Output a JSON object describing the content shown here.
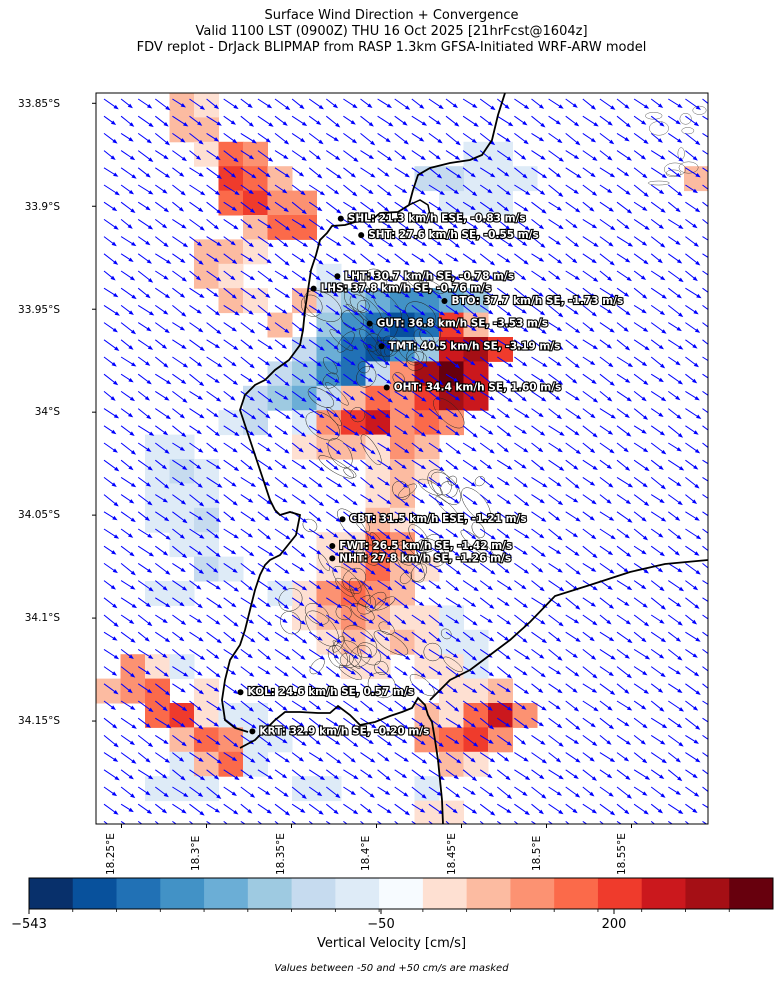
{
  "title": {
    "line1": "Surface Wind Direction + Convergence",
    "line2": "Valid 1100 LST (0900Z) THU 16 Oct 2025 [21hrFcst@1604z]",
    "line3": "FDV replot - DrJack BLIPMAP from RASP 1.3km GFSA-Initiated WRF-ARW model"
  },
  "axes": {
    "lat_labels": [
      "33.85°S",
      "33.9°S",
      "33.95°S",
      "34°S",
      "34.05°S",
      "34.1°S",
      "34.15°S"
    ],
    "lon_labels": [
      "18.25°E",
      "18.3°E",
      "18.35°E",
      "18.4°E",
      "18.45°E",
      "18.5°E",
      "18.55°E"
    ],
    "lat_range": [
      -34.2,
      -33.845
    ],
    "lon_range": [
      18.235,
      18.595
    ],
    "wind_arrow_color": "#0000ff"
  },
  "stations": [
    {
      "code": "SHL",
      "lon": 18.379,
      "lat": -33.906,
      "label": "SHL: 21.3 km/h ESE, -0.83 m/s"
    },
    {
      "code": "SHT",
      "lon": 18.391,
      "lat": -33.914,
      "label": "SHT: 27.6 km/h SE, -0.55 m/s"
    },
    {
      "code": "LHT",
      "lon": 18.377,
      "lat": -33.934,
      "label": "LHT: 30.7 km/h SE, -0.78 m/s"
    },
    {
      "code": "LHS",
      "lon": 18.363,
      "lat": -33.94,
      "label": "LHS: 37.8 km/h SE, -0.76 m/s"
    },
    {
      "code": "BTO",
      "lon": 18.44,
      "lat": -33.946,
      "label": "BTO: 37.7 km/h SE, -1.73 m/s"
    },
    {
      "code": "GUT",
      "lon": 18.396,
      "lat": -33.957,
      "label": "GUT: 36.8 km/h SE, -3.53 m/s"
    },
    {
      "code": "TMT",
      "lon": 18.403,
      "lat": -33.968,
      "label": "TMT: 40.5 km/h SE, -3.19 m/s"
    },
    {
      "code": "OHT",
      "lon": 18.406,
      "lat": -33.988,
      "label": "OHT: 34.4 km/h SE, 1.60 m/s"
    },
    {
      "code": "CBT",
      "lon": 18.38,
      "lat": -34.052,
      "label": "CBT: 31.5 km/h ESE, -1.21 m/s"
    },
    {
      "code": "FWT",
      "lon": 18.374,
      "lat": -34.065,
      "label": "FWT: 26.5 km/h SE, -1.42 m/s"
    },
    {
      "code": "NHT",
      "lon": 18.374,
      "lat": -34.071,
      "label": "NHT: 27.8 km/h SE, -1.26 m/s"
    },
    {
      "code": "KOL",
      "lon": 18.32,
      "lat": -34.136,
      "label": "KOL: 24.6 km/h SE, 0.57 m/s"
    },
    {
      "code": "KRT",
      "lon": 18.327,
      "lat": -34.155,
      "label": "KRT: 32.9 km/h SE, -0.20 m/s"
    }
  ],
  "colorbar": {
    "label": "Vertical Velocity [cm/s]",
    "ticks": [
      {
        "value": -543,
        "label": "−543"
      },
      {
        "value": -50,
        "label": "−50"
      },
      {
        "value": 200,
        "label": "200"
      }
    ],
    "colors": [
      "#08306b",
      "#08519c",
      "#2171b5",
      "#4292c6",
      "#6baed6",
      "#9ecae1",
      "#c6dbef",
      "#deebf7",
      "#f7fbff",
      "#fee0d2",
      "#fcbba1",
      "#fc9272",
      "#fb6a4a",
      "#ef3b2c",
      "#cb181d",
      "#a50f15",
      "#67000d"
    ]
  },
  "footnote": "Values between -50 and +50 cm/s are masked"
}
